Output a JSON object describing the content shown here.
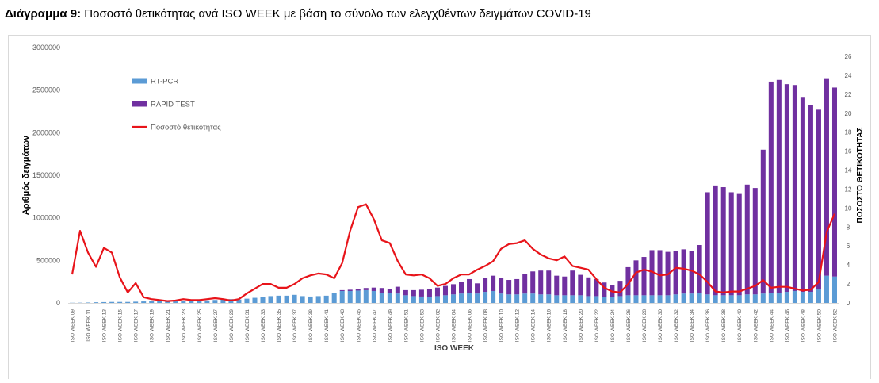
{
  "chart_data": {
    "type": "combo",
    "title_prefix": "Διάγραμμα 9:",
    "title": "Ποσοστό θετικότητας ανά ISO WEEK με βάση το σύνολο των ελεγχθέντων δειγμάτων COVID-19",
    "y_label": "Αριθμός δειγμάτων",
    "y2_label": "ΠΟΣΟΣΤΟ ΘΕΤΙΚΟΤΗΤΑΣ",
    "x_label": "ISO WEEK",
    "legend": "upper-left",
    "grid": false,
    "categories": [
      "ISO WEEK 09",
      null,
      "ISO WEEK 11",
      null,
      "ISO WEEK 13",
      null,
      "ISO WEEK 15",
      null,
      "ISO WEEK 17",
      null,
      "ISO WEEK 19",
      null,
      "ISO WEEK 21",
      null,
      "ISO WEEK 23",
      null,
      "ISO WEEK 25",
      null,
      "ISO WEEK 27",
      null,
      "ISO WEEK 29",
      null,
      "ISO WEEK 31",
      null,
      "ISO WEEK 33",
      null,
      "ISO WEEK 35",
      null,
      "ISO WEEK 37",
      null,
      "ISO WEEK 39",
      null,
      "ISO WEEK 41",
      null,
      "ISO WEEK 43",
      null,
      "ISO WEEK 45",
      null,
      "ISO WEEK 47",
      null,
      "ISO WEEK 49",
      null,
      "ISO WEEK 51",
      null,
      "ISO WEEK 53",
      null,
      "ISO WEEK 02",
      null,
      "ISO WEEK 04",
      null,
      "ISO WEEK 06",
      null,
      "ISO WEEK 08",
      null,
      "ISO WEEK 10",
      null,
      "ISO WEEK 12",
      null,
      "ISO WEEK 14",
      null,
      "ISO WEEK 16",
      null,
      "ISO WEEK 18",
      null,
      "ISO WEEK 20",
      null,
      "ISO WEEK 22",
      null,
      "ISO WEEK 24",
      null,
      "ISO WEEK 26",
      null,
      "ISO WEEK 28",
      null,
      "ISO WEEK 30",
      null,
      "ISO WEEK 32",
      null,
      "ISO WEEK 34",
      null,
      "ISO WEEK 36",
      null,
      "ISO WEEK 38",
      null,
      "ISO WEEK 40",
      null,
      "ISO WEEK 42",
      null,
      "ISO WEEK 44",
      null,
      "ISO WEEK 46",
      null,
      "ISO WEEK 48",
      null,
      "ISO WEEK 50",
      null,
      "ISO WEEK 52"
    ],
    "series": [
      {
        "name": "RT-PCR",
        "type": "bar",
        "color": "#5b9bd5",
        "values": [
          2000,
          3000,
          5000,
          8000,
          10000,
          12000,
          12000,
          12000,
          15000,
          18000,
          20000,
          20000,
          18000,
          20000,
          22000,
          25000,
          28000,
          30000,
          35000,
          40000,
          45000,
          40000,
          50000,
          60000,
          70000,
          80000,
          85000,
          85000,
          95000,
          80000,
          75000,
          80000,
          85000,
          120000,
          140000,
          140000,
          145000,
          150000,
          140000,
          120000,
          115000,
          110000,
          90000,
          80000,
          75000,
          70000,
          80000,
          90000,
          100000,
          110000,
          120000,
          110000,
          130000,
          140000,
          110000,
          100000,
          100000,
          110000,
          110000,
          100000,
          100000,
          90000,
          90000,
          90000,
          90000,
          80000,
          80000,
          70000,
          70000,
          80000,
          90000,
          90000,
          90000,
          90000,
          90000,
          90000,
          100000,
          110000,
          110000,
          120000,
          100000,
          90000,
          90000,
          90000,
          90000,
          100000,
          100000,
          110000,
          120000,
          120000,
          130000,
          140000,
          130000,
          130000,
          160000,
          320000,
          310000
        ]
      },
      {
        "name": "RAPID TEST",
        "type": "bar",
        "color": "#7030a0",
        "values": [
          0,
          0,
          0,
          0,
          0,
          0,
          0,
          0,
          0,
          0,
          0,
          0,
          0,
          0,
          0,
          0,
          0,
          0,
          0,
          0,
          0,
          0,
          0,
          0,
          0,
          0,
          0,
          0,
          0,
          0,
          0,
          0,
          0,
          0,
          10000,
          15000,
          20000,
          25000,
          40000,
          55000,
          50000,
          80000,
          60000,
          70000,
          80000,
          90000,
          100000,
          110000,
          120000,
          140000,
          160000,
          120000,
          160000,
          180000,
          180000,
          170000,
          180000,
          230000,
          260000,
          280000,
          280000,
          230000,
          220000,
          290000,
          240000,
          220000,
          200000,
          170000,
          140000,
          180000,
          330000,
          410000,
          450000,
          530000,
          530000,
          510000,
          510000,
          520000,
          500000,
          560000,
          1200000,
          1290000,
          1270000,
          1210000,
          1190000,
          1290000,
          1250000,
          1690000,
          2480000,
          2500000,
          2440000,
          2420000,
          2290000,
          2190000,
          2110000,
          2320000,
          2220000
        ]
      },
      {
        "name": "Ποσοστό θετικότητας",
        "type": "line",
        "axis": "y2",
        "color": "#e8141a",
        "values": [
          3.0,
          7.6,
          5.3,
          3.8,
          5.8,
          5.3,
          2.7,
          1.1,
          2.1,
          0.6,
          0.4,
          0.3,
          0.2,
          0.25,
          0.4,
          0.3,
          0.3,
          0.4,
          0.5,
          0.4,
          0.25,
          0.4,
          1.0,
          1.5,
          2.0,
          2.0,
          1.6,
          1.6,
          2.0,
          2.6,
          2.9,
          3.1,
          3.0,
          2.6,
          4.2,
          7.6,
          10.1,
          10.4,
          8.8,
          6.6,
          6.3,
          4.4,
          3.0,
          2.9,
          3.0,
          2.6,
          1.8,
          2.0,
          2.6,
          3.0,
          3.0,
          3.5,
          3.9,
          4.4,
          5.7,
          6.2,
          6.3,
          6.6,
          5.7,
          5.1,
          4.7,
          4.5,
          4.9,
          3.9,
          3.7,
          3.5,
          2.5,
          1.6,
          1.2,
          1.1,
          2.0,
          3.2,
          3.5,
          3.3,
          2.9,
          3.0,
          3.7,
          3.6,
          3.4,
          3.0,
          2.2,
          1.2,
          1.1,
          1.2,
          1.2,
          1.5,
          1.8,
          2.4,
          1.6,
          1.7,
          1.7,
          1.5,
          1.3,
          1.4,
          2.2,
          7.5,
          9.4
        ]
      }
    ],
    "ylim": [
      0,
      3000000
    ],
    "yticks": [
      0,
      500000,
      1000000,
      1500000,
      2000000,
      2500000,
      3000000
    ],
    "y2lim": [
      0,
      26
    ],
    "y2ticks": [
      0,
      2,
      4,
      6,
      8,
      10,
      12,
      14,
      16,
      18,
      20,
      22,
      24,
      26
    ]
  }
}
